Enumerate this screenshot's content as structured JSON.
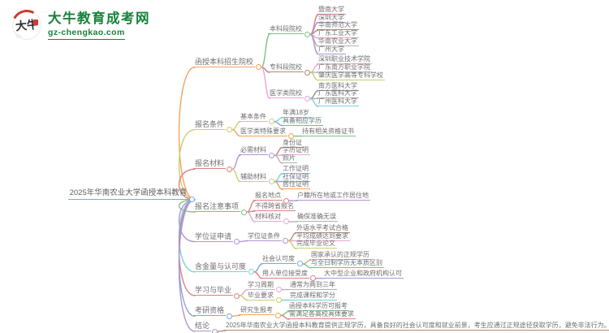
{
  "logo": {
    "badge_text": "大牛",
    "site_name": "大牛教育成考网",
    "site_url": "gz-chengkao.com",
    "brand_green": "#17823b",
    "brand_red": "#cf3b2d"
  },
  "palette": {
    "blue": "#7fa8d9",
    "orange": "#f2a35e",
    "green": "#7cc47f",
    "red": "#de8181",
    "purple": "#b195d4",
    "brown": "#b08a7a",
    "pink": "#eba6d2",
    "gray": "#b3b3b3",
    "darkgray": "#8f8f8f",
    "olive": "#cbcf6e",
    "cyan": "#7fd0dd"
  },
  "mindmap": {
    "root": {
      "label": "2025年华南农业大学函授本科教育",
      "color": "blue",
      "children": [
        {
          "label": "函授本科招生院校",
          "color": "orange",
          "children": [
            {
              "label": "本科段院校",
              "color": "green",
              "children": [
                {
                  "label": "暨南大学",
                  "color": "red"
                },
                {
                  "label": "深圳大学",
                  "color": "purple"
                },
                {
                  "label": "华南师范大学",
                  "color": "brown"
                },
                {
                  "label": "广东工业大学",
                  "color": "pink"
                },
                {
                  "label": "华南农业大学",
                  "color": "gray"
                },
                {
                  "label": "广州大学",
                  "color": "purple"
                }
              ]
            },
            {
              "label": "专科段院校",
              "color": "brown",
              "children": [
                {
                  "label": "深圳职业技术学院",
                  "color": "pink"
                },
                {
                  "label": "广东南方职业学院",
                  "color": "gray"
                },
                {
                  "label": "肇庆医学高等专科学校",
                  "color": "olive"
                }
              ]
            },
            {
              "label": "医学类院校",
              "color": "pink",
              "children": [
                {
                  "label": "南方医科大学",
                  "color": "darkgray"
                },
                {
                  "label": "广东医科大学",
                  "color": "gray"
                },
                {
                  "label": "广州医科大学",
                  "color": "cyan"
                }
              ]
            }
          ]
        },
        {
          "label": "报名条件",
          "color": "olive",
          "children": [
            {
              "label": "基本条件",
              "color": "olive",
              "children": [
                {
                  "label": "年满18岁",
                  "color": "cyan"
                },
                {
                  "label": "具备相应学历",
                  "color": "blue"
                }
              ]
            },
            {
              "label": "医学类特殊要求",
              "color": "orange",
              "children": [
                {
                  "label": "持有相关资格证书",
                  "color": "green"
                }
              ]
            }
          ]
        },
        {
          "label": "报名材料",
          "color": "red",
          "children": [
            {
              "label": "必需材料",
              "color": "purple",
              "children": [
                {
                  "label": "身份证",
                  "color": "brown"
                },
                {
                  "label": "学历证明",
                  "color": "pink"
                },
                {
                  "label": "照片",
                  "color": "gray"
                }
              ]
            },
            {
              "label": "辅助材料",
              "color": "olive",
              "children": [
                {
                  "label": "工作证明",
                  "color": "cyan"
                },
                {
                  "label": "社保证明",
                  "color": "blue"
                },
                {
                  "label": "居住证明",
                  "color": "orange"
                }
              ]
            }
          ]
        },
        {
          "label": "报名注意事项",
          "color": "green",
          "children": [
            {
              "label": "报名地点",
              "color": "red",
              "children": [
                {
                  "label": "户籍所在地或工作居住地",
                  "color": "purple"
                }
              ]
            },
            {
              "label": "不得跨省报名",
              "color": "red"
            },
            {
              "label": "材料核对",
              "color": "pink",
              "children": [
                {
                  "label": "确保准确无误",
                  "color": "gray"
                }
              ]
            }
          ]
        },
        {
          "label": "学位证申请",
          "color": "purple",
          "children": [
            {
              "label": "学位证条件",
              "color": "purple",
              "children": [
                {
                  "label": "外语水平考试合格",
                  "color": "brown"
                },
                {
                  "label": "平均成绩达到要求",
                  "color": "pink"
                },
                {
                  "label": "完成毕业论文",
                  "color": "olive"
                }
              ]
            }
          ]
        },
        {
          "label": "含金量与认可度",
          "color": "cyan",
          "children": [
            {
              "label": "社会认可度",
              "color": "blue",
              "children": [
                {
                  "label": "国家承认的正规学历",
                  "color": "orange"
                },
                {
                  "label": "与全日制学历无本质区别",
                  "color": "green"
                }
              ]
            },
            {
              "label": "用人单位接受度",
              "color": "red",
              "children": [
                {
                  "label": "大中型企业和政府机构认可",
                  "color": "purple"
                }
              ]
            }
          ]
        },
        {
          "label": "学习与毕业",
          "color": "red",
          "children": [
            {
              "label": "学习周期",
              "color": "pink",
              "children": [
                {
                  "label": "通常为两到三年",
                  "color": "gray"
                }
              ]
            },
            {
              "label": "毕业要求",
              "color": "olive",
              "children": [
                {
                  "label": "完成课程和学分",
                  "color": "cyan"
                }
              ]
            }
          ]
        },
        {
          "label": "考研资格",
          "color": "blue",
          "children": [
            {
              "label": "研究生报考",
              "color": "orange",
              "children": [
                {
                  "label": "函授本科学历可报考",
                  "color": "green"
                },
                {
                  "label": "需满足各高校具体要求",
                  "color": "red"
                }
              ]
            }
          ]
        },
        {
          "label": "结论",
          "color": "purple",
          "children": [
            {
              "label": "2025年华南农业大学函授本科教育提供正规学历，具备良好的社会认可度和就业前景，考生应通过正规途径获取学历，避免非法行为。",
              "color": "brown"
            }
          ]
        }
      ]
    }
  }
}
